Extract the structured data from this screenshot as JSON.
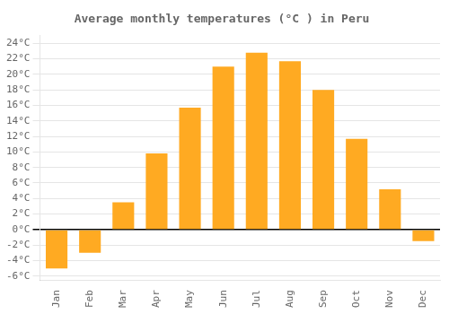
{
  "chart_data": {
    "type": "bar",
    "title": "Average monthly temperatures (°C ) in Peru",
    "categories": [
      "Jan",
      "Feb",
      "Mar",
      "Apr",
      "May",
      "Jun",
      "Jul",
      "Aug",
      "Sep",
      "Oct",
      "Nov",
      "Dec"
    ],
    "values": [
      -5.0,
      -3.0,
      3.5,
      9.8,
      15.7,
      21.0,
      22.8,
      21.7,
      18.0,
      11.7,
      5.2,
      -1.5
    ],
    "color": "#FFAA22",
    "ylim": [
      -6.5,
      25
    ],
    "yticks": [
      {
        "value": -6,
        "label": "-6°C"
      },
      {
        "value": -4,
        "label": "-4°C"
      },
      {
        "value": -2,
        "label": "-2°C"
      },
      {
        "value": 0,
        "label": "0°C"
      },
      {
        "value": 2,
        "label": "2°C"
      },
      {
        "value": 4,
        "label": "4°C"
      },
      {
        "value": 6,
        "label": "6°C"
      },
      {
        "value": 8,
        "label": "8°C"
      },
      {
        "value": 10,
        "label": "10°C"
      },
      {
        "value": 12,
        "label": "12°C"
      },
      {
        "value": 14,
        "label": "14°C"
      },
      {
        "value": 16,
        "label": "16°C"
      },
      {
        "value": 18,
        "label": "18°C"
      },
      {
        "value": 20,
        "label": "20°C"
      },
      {
        "value": 22,
        "label": "22°C"
      },
      {
        "value": 24,
        "label": "24°C"
      }
    ],
    "grid": true
  }
}
